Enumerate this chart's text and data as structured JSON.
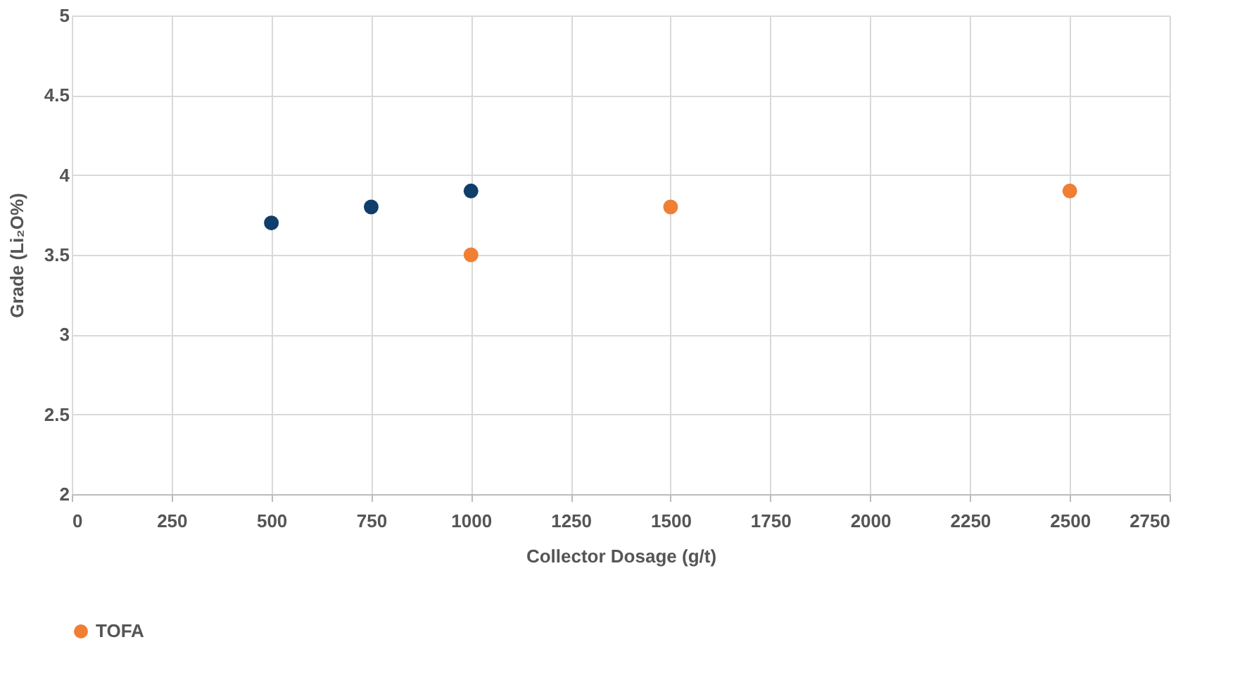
{
  "chart_data": {
    "type": "scatter",
    "xlabel": "Collector Dosage (g/t)",
    "ylabel": "Grade (Li₂O%)",
    "xlim": [
      0,
      2750
    ],
    "xticks": [
      0,
      250,
      500,
      750,
      1000,
      1250,
      1500,
      1750,
      2000,
      2250,
      2500,
      2750
    ],
    "ylim": [
      2,
      5
    ],
    "yticks": [
      2,
      2.5,
      3,
      3.5,
      4,
      4.5,
      5
    ],
    "grid": true,
    "legend": "bottom",
    "marker": "circle",
    "series": [
      {
        "name": "TOFA",
        "color": "#f07f33",
        "x": [
          1000,
          1500,
          2500
        ],
        "values": [
          3.5,
          3.8,
          3.9
        ]
      },
      {
        "color": "#0f3e6b",
        "x": [
          500,
          750,
          1000
        ],
        "values": [
          3.7,
          3.8,
          3.9
        ]
      }
    ]
  }
}
